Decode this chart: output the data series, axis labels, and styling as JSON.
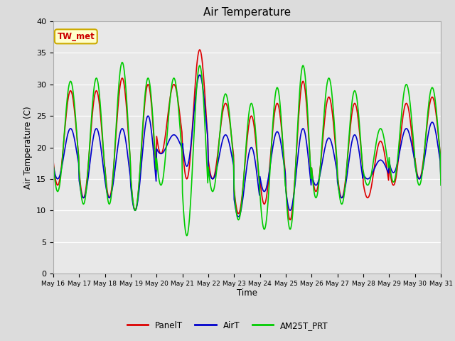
{
  "title": "Air Temperature",
  "ylabel": "Air Temperature (C)",
  "xlabel": "Time",
  "ylim": [
    0,
    40
  ],
  "background_color": "#dcdcdc",
  "plot_bg_color": "#e8e8e8",
  "annotation_text": "TW_met",
  "annotation_color": "#cc0000",
  "annotation_bg": "#ffffcc",
  "annotation_border": "#ccaa00",
  "series": {
    "PanelT": {
      "color": "#dd0000",
      "lw": 1.2
    },
    "AirT": {
      "color": "#0000cc",
      "lw": 1.2
    },
    "AM25T_PRT": {
      "color": "#00cc00",
      "lw": 1.2
    }
  },
  "tick_labels": [
    "May 16",
    "May 17",
    "May 18",
    "May 19",
    "May 20",
    "May 21",
    "May 22",
    "May 23",
    "May 24",
    "May 25",
    "May 26",
    "May 27",
    "May 28",
    "May 29",
    "May 30",
    "May 31"
  ],
  "yticks": [
    0,
    5,
    10,
    15,
    20,
    25,
    30,
    35,
    40
  ],
  "daily_max_panel": [
    29,
    29,
    31,
    30,
    30,
    35.5,
    27,
    25,
    27,
    30.5,
    28,
    27,
    21,
    27,
    28,
    28
  ],
  "daily_min_panel": [
    14,
    12,
    12,
    10,
    19,
    15,
    15,
    9.5,
    11,
    8.5,
    13,
    12,
    12,
    14,
    15,
    14.5
  ],
  "daily_max_air": [
    23,
    23,
    23,
    25,
    22,
    31.5,
    22,
    20,
    22.5,
    23,
    21.5,
    22,
    18,
    23,
    24,
    24
  ],
  "daily_min_air": [
    15,
    12,
    12,
    10,
    19,
    17,
    15,
    9,
    13,
    10,
    14,
    12,
    15,
    16,
    15,
    14
  ],
  "daily_max_am25": [
    30.5,
    31,
    33.5,
    31,
    31,
    33,
    28.5,
    27,
    29.5,
    33,
    31,
    29,
    23,
    30,
    29.5,
    29.5
  ],
  "daily_min_am25": [
    13,
    11,
    11,
    10,
    14,
    6,
    13,
    8.5,
    7,
    7,
    12,
    11,
    14,
    14.5,
    14,
    14.5
  ]
}
